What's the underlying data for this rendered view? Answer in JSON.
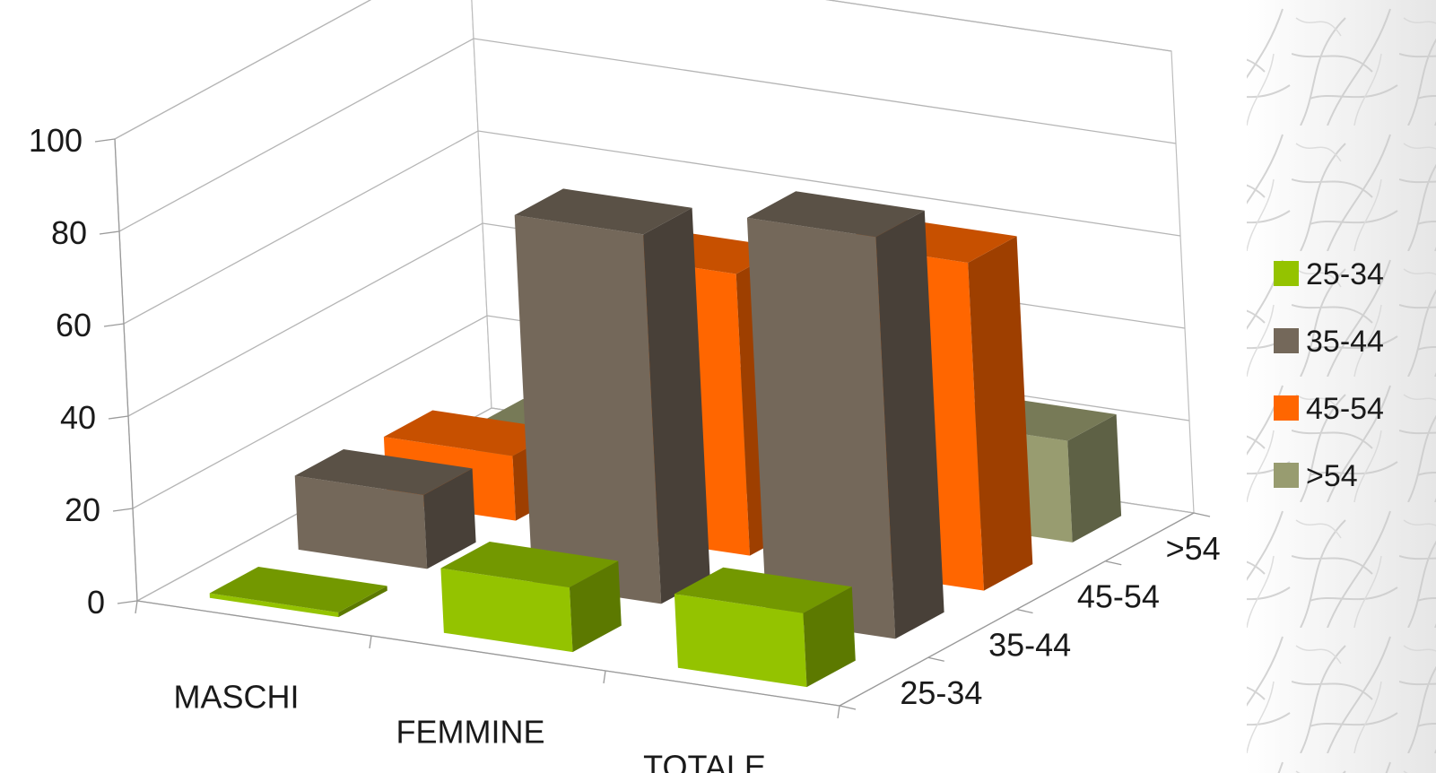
{
  "chart_data": {
    "type": "bar",
    "title": "",
    "xlabel": "",
    "ylabel": "",
    "ylim": [
      0,
      100
    ],
    "yticks": [
      "0",
      "20",
      "40",
      "60",
      "80",
      "100"
    ],
    "categories": [
      "MASCHI",
      "FEMMINE",
      "TOTALE"
    ],
    "series": [
      {
        "name": "25-34",
        "values": [
          1,
          14,
          16
        ]
      },
      {
        "name": "35-44",
        "values": [
          16,
          80,
          87
        ]
      },
      {
        "name": "45-54",
        "values": [
          14,
          61,
          71
        ]
      },
      {
        "name": ">54",
        "values": [
          6,
          22,
          22
        ]
      }
    ],
    "depth_axis_labels": [
      "25-34",
      "35-44",
      "45-54",
      ">54"
    ],
    "legend_position": "right",
    "grid": true,
    "colors": {
      "25-34": "#94c300",
      "35-44": "#74685a",
      "45-54": "#ff6600",
      ">54": "#989c70"
    }
  }
}
